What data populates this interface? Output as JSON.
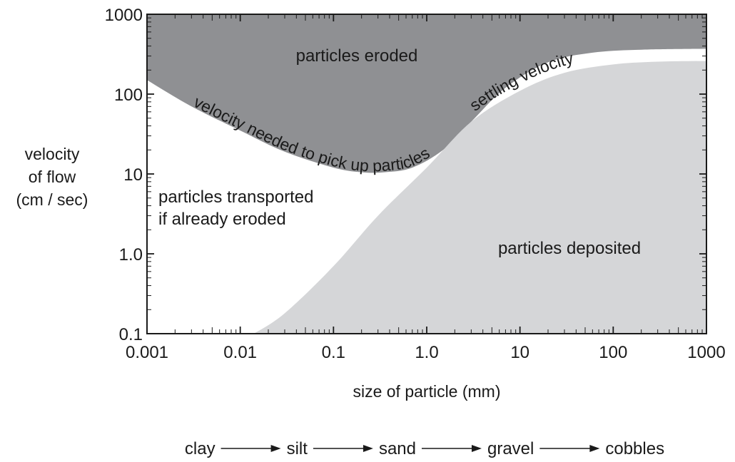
{
  "chart_data": {
    "type": "area",
    "x_scale": "log",
    "y_scale": "log",
    "xlim": [
      0.001,
      1000
    ],
    "ylim": [
      0.1,
      1000
    ],
    "x_ticks": [
      "0.001",
      "0.01",
      "0.1",
      "1.0",
      "10",
      "100",
      "1000"
    ],
    "y_ticks": [
      "0.1",
      "1.0",
      "10",
      "100",
      "1000"
    ],
    "xlabel": "size of particle (mm)",
    "ylabel_lines": [
      "velocity",
      "of flow",
      "(cm / sec)"
    ],
    "grid": false,
    "series": [
      {
        "name": "velocity needed to pick up particles",
        "x": [
          0.001,
          0.003,
          0.01,
          0.03,
          0.1,
          0.2,
          0.35,
          0.7,
          1.5,
          3,
          7,
          20,
          60,
          200,
          1000
        ],
        "y": [
          150,
          70,
          35,
          19,
          12,
          10.5,
          10.5,
          12,
          20,
          45,
          120,
          250,
          330,
          360,
          370
        ]
      },
      {
        "name": "settling velocity",
        "x": [
          0.014,
          0.03,
          0.1,
          0.3,
          1,
          3,
          10,
          30,
          100,
          300,
          1000
        ],
        "y": [
          0.1,
          0.18,
          0.7,
          3,
          12,
          45,
          110,
          185,
          235,
          255,
          260
        ]
      }
    ],
    "region_labels": {
      "eroded": "particles eroded",
      "transported_1": "particles transported",
      "transported_2": "if already eroded",
      "deposited": "particles deposited"
    },
    "size_sequence": [
      "clay",
      "silt",
      "sand",
      "gravel",
      "cobbles"
    ],
    "colors": {
      "eroded_fill": "#8f9093",
      "deposited_fill": "#d5d6d8",
      "axis": "#1a1a1a"
    }
  }
}
